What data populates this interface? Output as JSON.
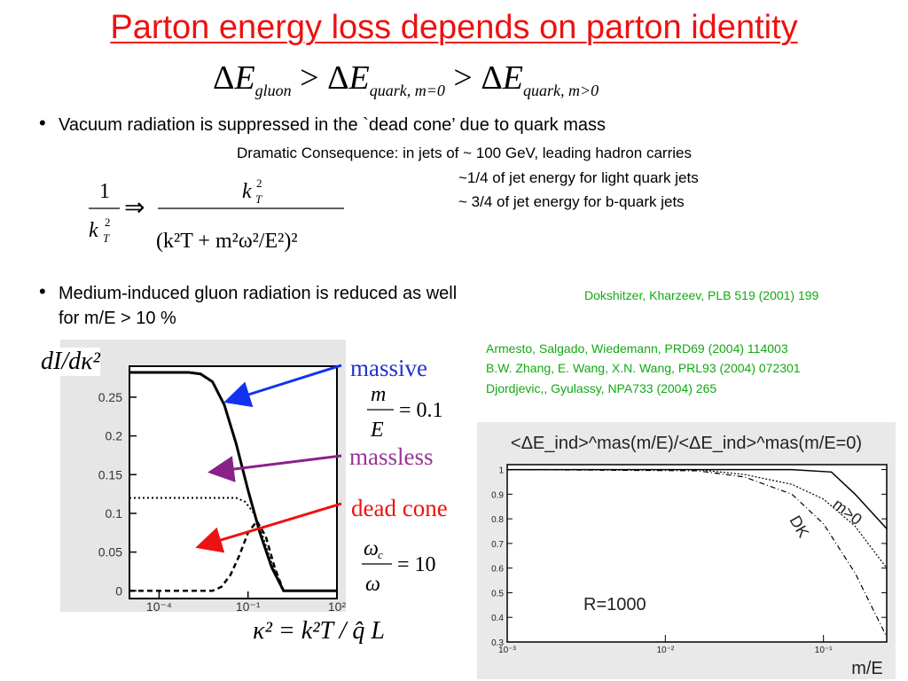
{
  "title": "Parton energy loss depends on parton identity",
  "inequality": {
    "delta": "Δ",
    "e": "E",
    "sub1": "gluon",
    "gt": ">",
    "sub2": "quark, m=0",
    "sub3": "quark, m>0"
  },
  "bullet1": {
    "marker": "•",
    "text": "Vacuum radiation is suppressed in the `dead cone’ due to quark mass",
    "consequence_line1": "Dramatic Consequence: in jets of ~ 100 GeV, leading hadron carries",
    "consequence_line2": "~1/4 of jet energy for light quark jets",
    "consequence_line3": "~ 3/4 of jet energy for b-quark jets"
  },
  "formula_deadcone": {
    "lhs_num": "1",
    "lhs_den": "k",
    "sub_T": "T",
    "sup_2": "2",
    "arrow": "⇒",
    "rhs_num": "k",
    "rhs_den_text": "(k²T + m²ω²/E²)²"
  },
  "bullet2": {
    "marker": "•",
    "line1": "Medium-induced gluon radiation is reduced as well",
    "line2": "for m/E > 10 %"
  },
  "references": {
    "ref1": "Dokshitzer, Kharzeev, PLB 519 (2001) 199",
    "ref2": "Armesto, Salgado, Wiedemann, PRD69 (2004) 114003",
    "ref3": "B.W. Zhang, E. Wang, X.N. Wang, PRL93 (2004) 072301",
    "ref4": "Djordjevic,, Gyulassy, NPA733 (2004) 265"
  },
  "labels": {
    "massive": "massive",
    "massless": "massless",
    "dead_cone": "dead cone",
    "m_over_e_num": "m",
    "m_over_e_den": "E",
    "m_over_e_val": "= 0.1",
    "omega_num": "ω",
    "omega_sub": "c",
    "omega_den": "ω",
    "omega_val": "= 10",
    "kappa_formula": "κ² = k²T / q̂ L",
    "dI_label": "dI/dκ²"
  },
  "colors": {
    "title": "#ee1111",
    "massive_arrow": "#1133ee",
    "massless_arrow": "#882288",
    "dead_arrow": "#ee1111",
    "refs": "#11aa11"
  },
  "chart_data": [
    {
      "type": "line",
      "xlabel": "",
      "ylabel": "dI/dκ²",
      "x_ticks": [
        "10⁻⁴",
        "10⁻¹",
        "10²"
      ],
      "y_ticks": [
        "0",
        "0.05",
        "0.1",
        "0.15",
        "0.2",
        "0.25"
      ],
      "xlim": [
        -5,
        2
      ],
      "ylim": [
        -0.01,
        0.29
      ],
      "log_x": true,
      "series": [
        {
          "name": "massive",
          "x": [
            -5,
            -3,
            -2.6,
            -2.2,
            -1.8,
            -1.4,
            -1.0,
            -0.6,
            -0.2,
            0.2,
            2
          ],
          "y": [
            0.282,
            0.282,
            0.28,
            0.27,
            0.24,
            0.19,
            0.13,
            0.075,
            0.03,
            0,
            0
          ]
        },
        {
          "name": "massless",
          "x": [
            -5,
            -1.4,
            -1.1,
            -0.8,
            -0.5,
            -0.2,
            0.2,
            2
          ],
          "y": [
            0.12,
            0.12,
            0.115,
            0.1,
            0.07,
            0.035,
            0,
            0
          ]
        },
        {
          "name": "dead cone",
          "x": [
            -5,
            -2.2,
            -1.9,
            -1.6,
            -1.3,
            -1.0,
            -0.7,
            -0.4,
            -0.1,
            0.2,
            2
          ],
          "y": [
            0,
            0,
            0.005,
            0.02,
            0.045,
            0.075,
            0.09,
            0.07,
            0.03,
            0,
            0
          ]
        }
      ]
    },
    {
      "type": "line",
      "title": "<ΔE_ind>^mas(m/E)/<ΔE_ind>^mas(m/E=0)",
      "xlabel": "m/E",
      "ylabel": "",
      "x_ticks": [
        "10⁻³",
        "10⁻²",
        "10⁻¹"
      ],
      "y_ticks": [
        "0.3",
        "0.4",
        "0.5",
        "0.6",
        "0.7",
        "0.8",
        "0.9",
        "1"
      ],
      "xlim": [
        -3,
        -0.6
      ],
      "ylim": [
        0.3,
        1.02
      ],
      "log_x": true,
      "annotation": "R=1000",
      "series": [
        {
          "name": "m>0",
          "x": [
            -3,
            -1.8,
            -1.2,
            -0.95,
            -0.8,
            -0.6
          ],
          "y": [
            1,
            1,
            1,
            0.99,
            0.9,
            0.76
          ]
        },
        {
          "name": "DK",
          "x": [
            -3,
            -1.8,
            -1.5,
            -1.2,
            -1.0,
            -0.8,
            -0.6
          ],
          "y": [
            1,
            1,
            0.98,
            0.94,
            0.88,
            0.77,
            0.6
          ]
        },
        {
          "name": "",
          "x": [
            -3,
            -1.8,
            -1.5,
            -1.2,
            -1.0,
            -0.8,
            -0.6
          ],
          "y": [
            1,
            0.995,
            0.97,
            0.9,
            0.78,
            0.58,
            0.32
          ]
        }
      ]
    }
  ]
}
